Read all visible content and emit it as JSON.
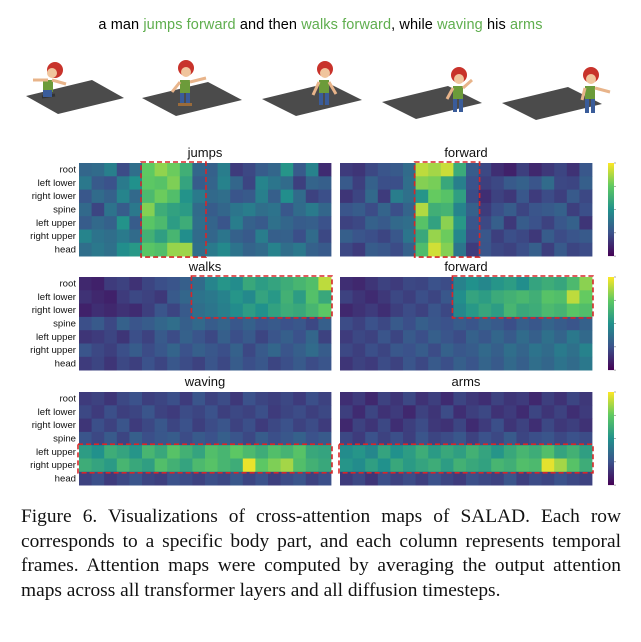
{
  "prompt": {
    "segments": [
      {
        "text": "a man ",
        "highlight": false
      },
      {
        "text": "jumps forward",
        "highlight": true
      },
      {
        "text": " and then ",
        "highlight": false
      },
      {
        "text": "walks forward",
        "highlight": true
      },
      {
        "text": ", while ",
        "highlight": false
      },
      {
        "text": "waving",
        "highlight": true
      },
      {
        "text": " his ",
        "highlight": false
      },
      {
        "text": "arms",
        "highlight": true
      }
    ],
    "highlight_color": "#5fae4e"
  },
  "colors": {
    "viridis_low": "#3b0f70",
    "viridis_high": "#fde725",
    "highlight_box": "#d62728"
  },
  "caption": {
    "label": "Figure 6.",
    "text": " Visualizations of cross-attention maps of SALAD. Each row corresponds to a specific body part, and each column represents temporal frames. Attention maps were computed by averaging the output attention maps across all transformer layers and all diffusion timesteps."
  },
  "chart_data": [
    {
      "type": "heatmap",
      "title": "jumps",
      "rows": [
        "root",
        "left lower",
        "right lower",
        "spine",
        "left upper",
        "right upper",
        "head"
      ],
      "highlight": {
        "cols": [
          5,
          9
        ],
        "rows": [
          0,
          6
        ]
      },
      "values": [
        [
          0.33,
          0.35,
          0.43,
          0.23,
          0.36,
          0.75,
          0.83,
          0.77,
          0.63,
          0.33,
          0.31,
          0.42,
          0.18,
          0.22,
          0.29,
          0.33,
          0.52,
          0.28,
          0.44,
          0.13
        ],
        [
          0.4,
          0.28,
          0.25,
          0.41,
          0.5,
          0.74,
          0.72,
          0.8,
          0.58,
          0.29,
          0.32,
          0.44,
          0.33,
          0.21,
          0.45,
          0.39,
          0.35,
          0.19,
          0.32,
          0.3
        ],
        [
          0.27,
          0.35,
          0.31,
          0.45,
          0.34,
          0.68,
          0.77,
          0.7,
          0.51,
          0.41,
          0.34,
          0.36,
          0.26,
          0.28,
          0.43,
          0.3,
          0.49,
          0.35,
          0.2,
          0.24
        ],
        [
          0.34,
          0.21,
          0.38,
          0.29,
          0.4,
          0.81,
          0.62,
          0.57,
          0.54,
          0.35,
          0.29,
          0.33,
          0.39,
          0.42,
          0.36,
          0.38,
          0.27,
          0.35,
          0.41,
          0.33
        ],
        [
          0.29,
          0.34,
          0.31,
          0.51,
          0.29,
          0.73,
          0.68,
          0.55,
          0.62,
          0.36,
          0.32,
          0.26,
          0.42,
          0.31,
          0.28,
          0.37,
          0.33,
          0.29,
          0.3,
          0.25
        ],
        [
          0.45,
          0.38,
          0.36,
          0.41,
          0.35,
          0.64,
          0.56,
          0.66,
          0.49,
          0.35,
          0.33,
          0.39,
          0.31,
          0.28,
          0.42,
          0.3,
          0.31,
          0.24,
          0.35,
          0.22
        ],
        [
          0.36,
          0.4,
          0.37,
          0.49,
          0.53,
          0.73,
          0.7,
          0.84,
          0.85,
          0.36,
          0.41,
          0.47,
          0.38,
          0.32,
          0.35,
          0.44,
          0.36,
          0.4,
          0.31,
          0.28
        ]
      ]
    },
    {
      "type": "heatmap",
      "title": "forward",
      "rows": [
        "root",
        "left lower",
        "right lower",
        "spine",
        "left upper",
        "right upper",
        "head"
      ],
      "highlight": {
        "cols": [
          6,
          10
        ],
        "rows": [
          0,
          6
        ]
      },
      "values": [
        [
          0.18,
          0.16,
          0.22,
          0.26,
          0.28,
          0.35,
          0.9,
          0.86,
          0.92,
          0.61,
          0.29,
          0.22,
          0.14,
          0.1,
          0.19,
          0.12,
          0.17,
          0.21,
          0.15,
          0.27
        ],
        [
          0.28,
          0.19,
          0.31,
          0.24,
          0.24,
          0.36,
          0.81,
          0.79,
          0.6,
          0.43,
          0.25,
          0.19,
          0.22,
          0.28,
          0.31,
          0.26,
          0.35,
          0.22,
          0.21,
          0.3
        ],
        [
          0.16,
          0.21,
          0.34,
          0.18,
          0.42,
          0.37,
          0.52,
          0.76,
          0.72,
          0.56,
          0.23,
          0.14,
          0.2,
          0.17,
          0.27,
          0.18,
          0.23,
          0.19,
          0.28,
          0.22
        ],
        [
          0.26,
          0.29,
          0.23,
          0.32,
          0.24,
          0.32,
          0.88,
          0.63,
          0.65,
          0.45,
          0.31,
          0.18,
          0.24,
          0.29,
          0.21,
          0.26,
          0.28,
          0.31,
          0.19,
          0.24
        ],
        [
          0.2,
          0.22,
          0.31,
          0.28,
          0.34,
          0.36,
          0.72,
          0.57,
          0.82,
          0.53,
          0.26,
          0.22,
          0.3,
          0.17,
          0.29,
          0.25,
          0.2,
          0.27,
          0.31,
          0.16
        ],
        [
          0.3,
          0.26,
          0.24,
          0.21,
          0.27,
          0.39,
          0.6,
          0.84,
          0.77,
          0.46,
          0.24,
          0.27,
          0.19,
          0.24,
          0.22,
          0.17,
          0.29,
          0.23,
          0.26,
          0.28
        ],
        [
          0.22,
          0.18,
          0.29,
          0.27,
          0.23,
          0.31,
          0.69,
          0.93,
          0.81,
          0.39,
          0.18,
          0.26,
          0.22,
          0.2,
          0.24,
          0.3,
          0.19,
          0.28,
          0.21,
          0.23
        ]
      ]
    },
    {
      "type": "heatmap",
      "title": "walks",
      "rows": [
        "root",
        "left lower",
        "right lower",
        "spine",
        "left upper",
        "right upper",
        "head"
      ],
      "highlight": {
        "cols": [
          9,
          19
        ],
        "rows": [
          0,
          2
        ]
      },
      "values": [
        [
          0.12,
          0.1,
          0.18,
          0.2,
          0.15,
          0.21,
          0.24,
          0.26,
          0.3,
          0.35,
          0.45,
          0.52,
          0.48,
          0.6,
          0.55,
          0.58,
          0.62,
          0.66,
          0.7,
          0.9
        ],
        [
          0.15,
          0.12,
          0.1,
          0.18,
          0.22,
          0.2,
          0.17,
          0.28,
          0.33,
          0.38,
          0.4,
          0.44,
          0.52,
          0.47,
          0.58,
          0.53,
          0.64,
          0.55,
          0.71,
          0.6
        ],
        [
          0.1,
          0.14,
          0.12,
          0.15,
          0.13,
          0.19,
          0.26,
          0.21,
          0.28,
          0.36,
          0.39,
          0.43,
          0.48,
          0.55,
          0.5,
          0.57,
          0.62,
          0.6,
          0.66,
          0.74
        ],
        [
          0.24,
          0.28,
          0.22,
          0.31,
          0.26,
          0.29,
          0.33,
          0.36,
          0.3,
          0.34,
          0.29,
          0.32,
          0.27,
          0.31,
          0.26,
          0.28,
          0.25,
          0.27,
          0.22,
          0.3
        ],
        [
          0.16,
          0.18,
          0.21,
          0.16,
          0.24,
          0.2,
          0.28,
          0.23,
          0.31,
          0.26,
          0.22,
          0.3,
          0.24,
          0.28,
          0.21,
          0.26,
          0.3,
          0.25,
          0.33,
          0.2
        ],
        [
          0.26,
          0.22,
          0.19,
          0.24,
          0.29,
          0.23,
          0.27,
          0.32,
          0.25,
          0.3,
          0.27,
          0.24,
          0.31,
          0.22,
          0.28,
          0.33,
          0.26,
          0.3,
          0.35,
          0.29
        ],
        [
          0.18,
          0.21,
          0.16,
          0.22,
          0.19,
          0.25,
          0.21,
          0.27,
          0.23,
          0.2,
          0.26,
          0.22,
          0.29,
          0.24,
          0.27,
          0.21,
          0.24,
          0.28,
          0.23,
          0.26
        ]
      ]
    },
    {
      "type": "heatmap",
      "title": "forward",
      "rows": [
        "root",
        "left lower",
        "right lower",
        "spine",
        "left upper",
        "right upper",
        "head"
      ],
      "highlight": {
        "cols": [
          9,
          19
        ],
        "rows": [
          0,
          2
        ]
      },
      "values": [
        [
          0.14,
          0.12,
          0.16,
          0.2,
          0.18,
          0.22,
          0.21,
          0.25,
          0.23,
          0.44,
          0.5,
          0.46,
          0.52,
          0.55,
          0.49,
          0.58,
          0.62,
          0.59,
          0.68,
          0.82
        ],
        [
          0.2,
          0.16,
          0.13,
          0.17,
          0.22,
          0.19,
          0.24,
          0.21,
          0.27,
          0.49,
          0.58,
          0.55,
          0.61,
          0.64,
          0.67,
          0.63,
          0.72,
          0.7,
          0.9,
          0.76
        ],
        [
          0.12,
          0.15,
          0.18,
          0.14,
          0.19,
          0.23,
          0.2,
          0.26,
          0.22,
          0.46,
          0.53,
          0.59,
          0.55,
          0.66,
          0.6,
          0.62,
          0.68,
          0.65,
          0.73,
          0.7
        ],
        [
          0.23,
          0.2,
          0.25,
          0.22,
          0.28,
          0.24,
          0.3,
          0.27,
          0.25,
          0.29,
          0.26,
          0.31,
          0.28,
          0.24,
          0.3,
          0.27,
          0.32,
          0.29,
          0.26,
          0.31
        ],
        [
          0.18,
          0.22,
          0.2,
          0.26,
          0.21,
          0.28,
          0.24,
          0.3,
          0.26,
          0.23,
          0.31,
          0.27,
          0.33,
          0.28,
          0.35,
          0.3,
          0.37,
          0.32,
          0.4,
          0.34
        ],
        [
          0.22,
          0.19,
          0.24,
          0.21,
          0.27,
          0.25,
          0.29,
          0.23,
          0.31,
          0.27,
          0.29,
          0.34,
          0.3,
          0.36,
          0.32,
          0.38,
          0.35,
          0.41,
          0.37,
          0.44
        ],
        [
          0.16,
          0.2,
          0.18,
          0.23,
          0.2,
          0.26,
          0.22,
          0.28,
          0.24,
          0.3,
          0.26,
          0.32,
          0.28,
          0.34,
          0.3,
          0.36,
          0.33,
          0.38,
          0.35,
          0.4
        ]
      ]
    },
    {
      "type": "heatmap",
      "title": "waving",
      "rows": [
        "root",
        "left lower",
        "right lower",
        "spine",
        "left upper",
        "right upper",
        "head"
      ],
      "highlight": {
        "cols": [
          0,
          19
        ],
        "rows": [
          4,
          5
        ]
      },
      "values": [
        [
          0.18,
          0.2,
          0.16,
          0.22,
          0.25,
          0.19,
          0.21,
          0.24,
          0.18,
          0.26,
          0.2,
          0.23,
          0.17,
          0.25,
          0.21,
          0.19,
          0.22,
          0.18,
          0.24,
          0.2
        ],
        [
          0.22,
          0.18,
          0.24,
          0.19,
          0.21,
          0.26,
          0.2,
          0.18,
          0.23,
          0.21,
          0.25,
          0.19,
          0.22,
          0.2,
          0.24,
          0.18,
          0.21,
          0.23,
          0.19,
          0.22
        ],
        [
          0.16,
          0.24,
          0.2,
          0.26,
          0.18,
          0.22,
          0.27,
          0.21,
          0.25,
          0.19,
          0.23,
          0.26,
          0.2,
          0.24,
          0.18,
          0.22,
          0.25,
          0.2,
          0.23,
          0.18
        ],
        [
          0.26,
          0.22,
          0.28,
          0.21,
          0.3,
          0.24,
          0.27,
          0.29,
          0.23,
          0.28,
          0.25,
          0.3,
          0.26,
          0.22,
          0.29,
          0.24,
          0.27,
          0.31,
          0.25,
          0.28
        ],
        [
          0.55,
          0.5,
          0.62,
          0.58,
          0.52,
          0.66,
          0.6,
          0.72,
          0.64,
          0.58,
          0.7,
          0.66,
          0.74,
          0.68,
          0.62,
          0.7,
          0.65,
          0.72,
          0.6,
          0.58
        ],
        [
          0.62,
          0.58,
          0.54,
          0.66,
          0.6,
          0.56,
          0.7,
          0.64,
          0.58,
          0.68,
          0.72,
          0.66,
          0.62,
          0.97,
          0.74,
          0.8,
          0.86,
          0.7,
          0.64,
          0.6
        ],
        [
          0.2,
          0.24,
          0.18,
          0.22,
          0.26,
          0.21,
          0.19,
          0.25,
          0.23,
          0.2,
          0.24,
          0.22,
          0.27,
          0.21,
          0.25,
          0.19,
          0.23,
          0.26,
          0.2,
          0.24
        ]
      ]
    },
    {
      "type": "heatmap",
      "title": "arms",
      "rows": [
        "root",
        "left lower",
        "right lower",
        "spine",
        "left upper",
        "right upper",
        "head"
      ],
      "highlight": {
        "cols": [
          0,
          19
        ],
        "rows": [
          4,
          5
        ]
      },
      "values": [
        [
          0.14,
          0.18,
          0.12,
          0.2,
          0.16,
          0.22,
          0.15,
          0.19,
          0.13,
          0.21,
          0.17,
          0.14,
          0.2,
          0.16,
          0.18,
          0.12,
          0.19,
          0.15,
          0.21,
          0.17
        ],
        [
          0.19,
          0.13,
          0.21,
          0.15,
          0.18,
          0.12,
          0.2,
          0.16,
          0.23,
          0.14,
          0.19,
          0.22,
          0.15,
          0.18,
          0.13,
          0.21,
          0.16,
          0.2,
          0.14,
          0.18
        ],
        [
          0.12,
          0.2,
          0.16,
          0.22,
          0.14,
          0.19,
          0.23,
          0.17,
          0.15,
          0.21,
          0.13,
          0.18,
          0.24,
          0.16,
          0.2,
          0.14,
          0.22,
          0.17,
          0.19,
          0.15
        ],
        [
          0.22,
          0.18,
          0.25,
          0.2,
          0.24,
          0.19,
          0.26,
          0.21,
          0.23,
          0.27,
          0.2,
          0.25,
          0.22,
          0.28,
          0.21,
          0.24,
          0.26,
          0.22,
          0.25,
          0.23
        ],
        [
          0.48,
          0.52,
          0.46,
          0.58,
          0.5,
          0.55,
          0.62,
          0.54,
          0.6,
          0.56,
          0.64,
          0.58,
          0.52,
          0.6,
          0.66,
          0.62,
          0.7,
          0.58,
          0.64,
          0.56
        ],
        [
          0.52,
          0.48,
          0.56,
          0.5,
          0.6,
          0.54,
          0.58,
          0.62,
          0.55,
          0.64,
          0.6,
          0.57,
          0.66,
          0.63,
          0.7,
          0.68,
          0.96,
          0.86,
          0.72,
          0.62
        ],
        [
          0.18,
          0.22,
          0.16,
          0.24,
          0.2,
          0.23,
          0.19,
          0.25,
          0.21,
          0.18,
          0.24,
          0.22,
          0.2,
          0.26,
          0.19,
          0.23,
          0.21,
          0.25,
          0.22,
          0.2
        ]
      ]
    }
  ]
}
